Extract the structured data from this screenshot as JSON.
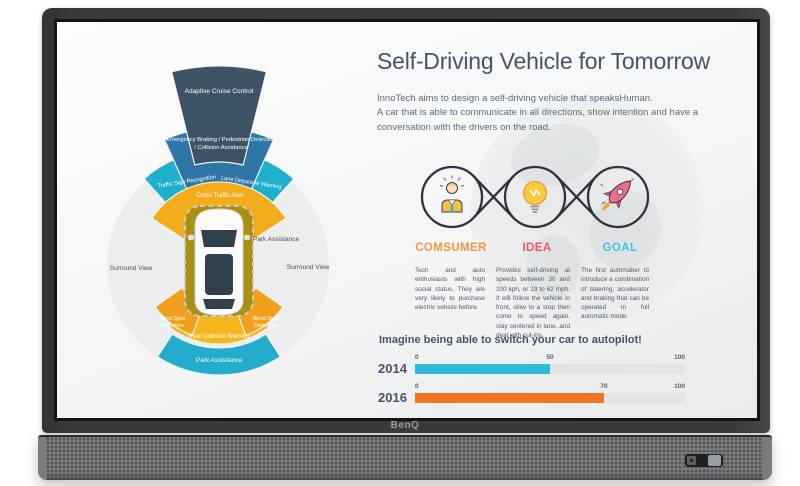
{
  "device": {
    "brand": "BenQ"
  },
  "theme": {
    "heading_color": "#44546A",
    "body_text_color": "#5A6B7B",
    "loop_stroke_color": "#33303F"
  },
  "slide": {
    "title": "Self-Driving Vehicle for Tomorrow",
    "intro_line1": "InnoTech aims to design a self-driving vehicle that speaksHuman.",
    "intro_line2": "A car that is able to communicate in all directions, show intention and have a conversation with the drivers on the road.",
    "steps": [
      {
        "label": "COMSUMER",
        "color": "#F2953B",
        "icon": "consumer-person-icon",
        "description": "Tech and auto enthusiasts with high social status. They are very likely to purchase electric vehicle before."
      },
      {
        "label": "IDEA",
        "color": "#EE5A5F",
        "icon": "lightbulb-icon",
        "description": "Provides self-driving at speeds between 30 and 100 kph, or 19 to 62 mph. It will follow the vehicle in front, slow to a stop then come to speed again, stay centered in lane, and deal with cut-ins."
      },
      {
        "label": "GOAL",
        "color": "#3FC6DF",
        "icon": "rocket-icon",
        "description": "The first automaker to introduce a combination of steering, accelerator and braking that can be operated in full automatic mode."
      }
    ],
    "diagram": {
      "labels": {
        "adaptive_cruise_control": "Adaptive Cruise Control",
        "emergency_line1": "Emergency Braking / Pedestrian Detection",
        "emergency_line2": "/ Collision Avoidance",
        "traffic_sign_recognition": "Traffic Sign Recognition",
        "lane_departure_warning": "Lane Departure Warning",
        "cross_traffic_alert": "Cross Traffic Alert",
        "park_assistance_side": "Park Assistance",
        "surround_view": "Surround View",
        "blind_spot_line1": "Blind Spot",
        "blind_spot_line2": "Detection",
        "rear_collision_warning": "Rear Collision Warning",
        "park_assistance_bottom": "Park Assistance"
      },
      "colors": {
        "circle_bg": "#ECEDEF",
        "adaptive_cruise": "#3E5366",
        "emergency": "#2E75A8",
        "traffic_lane_band": "#1FB0CE",
        "cross_traffic_band": "#F2AC1C",
        "blind_spot": "#F0A01C",
        "rear_collision": "#F3B71D",
        "park_bottom": "#23ACCB",
        "car_zone": "#AB8E12",
        "car_body": "#FAFAFA",
        "car_glass": "#31414B"
      }
    }
  },
  "chart_data": {
    "type": "bar",
    "orientation": "horizontal",
    "title": "Imagine being able to switch your car to autopilot!",
    "categories": [
      "2014",
      "2016"
    ],
    "values": [
      50,
      70
    ],
    "xlim": [
      0,
      100
    ],
    "scale_labels": [
      [
        "0",
        "50",
        "100"
      ],
      [
        "0",
        "70",
        "100"
      ]
    ],
    "bar_colors": [
      "#2CBBD8",
      "#F0751F"
    ],
    "track_color": "#E3E4E6",
    "grid": false
  }
}
